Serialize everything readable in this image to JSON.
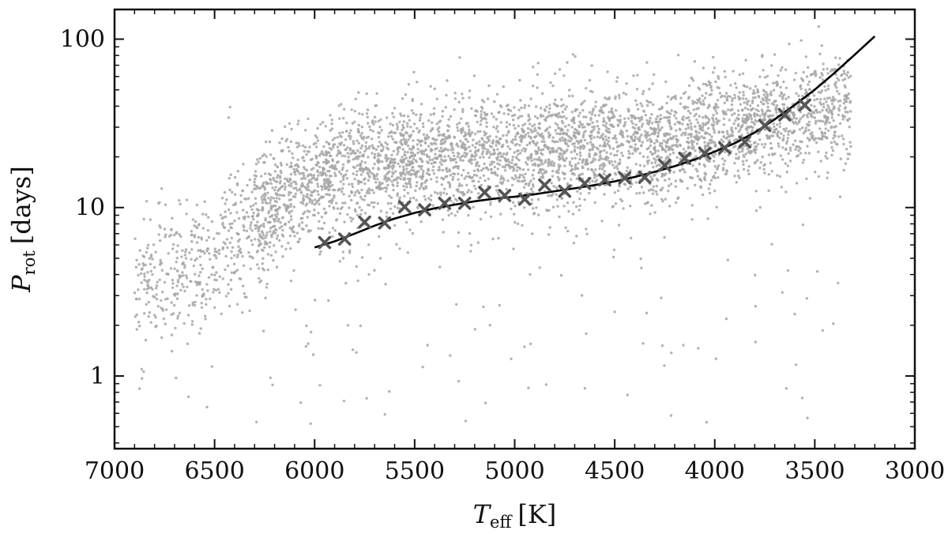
{
  "chart_data": {
    "type": "scatter",
    "title": "",
    "xlabel": {
      "symbol": "T",
      "subscript": "eff",
      "unit": "[K]"
    },
    "ylabel": {
      "symbol": "P",
      "subscript": "rot",
      "unit": "[days]"
    },
    "x_reversed": true,
    "y_scale": "log",
    "xlim": [
      7000,
      3000
    ],
    "ylim": [
      0.37,
      150
    ],
    "x_ticks": [
      7000,
      6500,
      6000,
      5500,
      5000,
      4500,
      4000,
      3500,
      3000
    ],
    "x_tick_labels": [
      "7000",
      "6500",
      "6000",
      "5500",
      "5000",
      "4500",
      "4000",
      "3500",
      "3000"
    ],
    "y_ticks": [
      1,
      10,
      100
    ],
    "y_tick_labels": [
      "1",
      "10",
      "100"
    ],
    "grid": false,
    "series": [
      {
        "kind": "scatter-cloud",
        "color": "#a6a6a6",
        "ridge": [
          {
            "teff": 6800,
            "prot": 4.0
          },
          {
            "teff": 6500,
            "prot": 5.0
          },
          {
            "teff": 6300,
            "prot": 8.0
          },
          {
            "teff": 6100,
            "prot": 13.0
          },
          {
            "teff": 5800,
            "prot": 17.0
          },
          {
            "teff": 5400,
            "prot": 20.0
          },
          {
            "teff": 5000,
            "prot": 22.0
          },
          {
            "teff": 4600,
            "prot": 23.0
          },
          {
            "teff": 4200,
            "prot": 25.0
          },
          {
            "teff": 3800,
            "prot": 30.0
          },
          {
            "teff": 3500,
            "prot": 38.0
          }
        ]
      },
      {
        "kind": "binned-markers",
        "marker": "x",
        "color": "#555555",
        "points": [
          {
            "teff": 5950,
            "prot": 6.2
          },
          {
            "teff": 5850,
            "prot": 6.5
          },
          {
            "teff": 5750,
            "prot": 8.2
          },
          {
            "teff": 5650,
            "prot": 8.1
          },
          {
            "teff": 5550,
            "prot": 10.1
          },
          {
            "teff": 5450,
            "prot": 9.7
          },
          {
            "teff": 5350,
            "prot": 10.6
          },
          {
            "teff": 5250,
            "prot": 10.6
          },
          {
            "teff": 5150,
            "prot": 12.3
          },
          {
            "teff": 5050,
            "prot": 11.8
          },
          {
            "teff": 4950,
            "prot": 11.2
          },
          {
            "teff": 4850,
            "prot": 13.6
          },
          {
            "teff": 4750,
            "prot": 12.5
          },
          {
            "teff": 4650,
            "prot": 13.9
          },
          {
            "teff": 4550,
            "prot": 14.6
          },
          {
            "teff": 4450,
            "prot": 15.0
          },
          {
            "teff": 4350,
            "prot": 15.1
          },
          {
            "teff": 4250,
            "prot": 17.8
          },
          {
            "teff": 4150,
            "prot": 19.6
          },
          {
            "teff": 4050,
            "prot": 21.0
          },
          {
            "teff": 3950,
            "prot": 22.6
          },
          {
            "teff": 3850,
            "prot": 24.5
          },
          {
            "teff": 3750,
            "prot": 30.7
          },
          {
            "teff": 3650,
            "prot": 35.5
          },
          {
            "teff": 3550,
            "prot": 40.6
          }
        ]
      },
      {
        "kind": "fit-line",
        "color": "#000000",
        "points": [
          {
            "teff": 6000,
            "prot": 5.8
          },
          {
            "teff": 5900,
            "prot": 6.3
          },
          {
            "teff": 5800,
            "prot": 7.0
          },
          {
            "teff": 5700,
            "prot": 7.8
          },
          {
            "teff": 5600,
            "prot": 8.6
          },
          {
            "teff": 5500,
            "prot": 9.3
          },
          {
            "teff": 5400,
            "prot": 9.9
          },
          {
            "teff": 5300,
            "prot": 10.4
          },
          {
            "teff": 5200,
            "prot": 10.9
          },
          {
            "teff": 5100,
            "prot": 11.3
          },
          {
            "teff": 5000,
            "prot": 11.6
          },
          {
            "teff": 4900,
            "prot": 12.0
          },
          {
            "teff": 4800,
            "prot": 12.5
          },
          {
            "teff": 4700,
            "prot": 13.0
          },
          {
            "teff": 4600,
            "prot": 13.6
          },
          {
            "teff": 4500,
            "prot": 14.3
          },
          {
            "teff": 4400,
            "prot": 15.2
          },
          {
            "teff": 4300,
            "prot": 16.3
          },
          {
            "teff": 4200,
            "prot": 17.6
          },
          {
            "teff": 4100,
            "prot": 19.3
          },
          {
            "teff": 4000,
            "prot": 21.5
          },
          {
            "teff": 3900,
            "prot": 24.1
          },
          {
            "teff": 3800,
            "prot": 27.9
          },
          {
            "teff": 3700,
            "prot": 33.4
          },
          {
            "teff": 3600,
            "prot": 40.7
          },
          {
            "teff": 3500,
            "prot": 50.1
          },
          {
            "teff": 3400,
            "prot": 63.2
          },
          {
            "teff": 3300,
            "prot": 80.9
          },
          {
            "teff": 3200,
            "prot": 104.0
          }
        ]
      }
    ]
  }
}
